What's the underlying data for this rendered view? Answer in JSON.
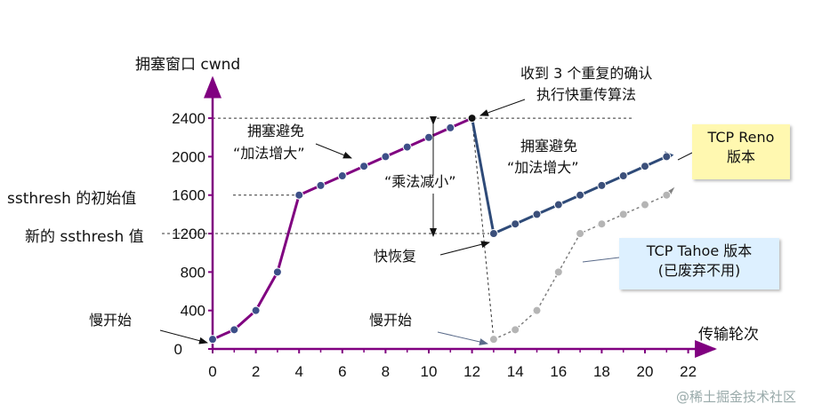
{
  "chart_data": {
    "type": "line",
    "ylabel": "拥塞窗口 cwnd",
    "xlabel": "传输轮次",
    "x_ticks": [
      0,
      2,
      4,
      6,
      8,
      10,
      12,
      14,
      16,
      18,
      20,
      22
    ],
    "y_ticks": [
      0,
      400,
      800,
      1200,
      1600,
      2000,
      2400
    ],
    "xlim": [
      0,
      22
    ],
    "ylim": [
      0,
      2400
    ],
    "series": [
      {
        "name": "TCP Reno 版本",
        "x": [
          0,
          1,
          2,
          3,
          4,
          5,
          6,
          7,
          8,
          9,
          10,
          11,
          12,
          13,
          14,
          15,
          16,
          17,
          18,
          19,
          20,
          21
        ],
        "values": [
          100,
          200,
          400,
          800,
          1600,
          1700,
          1800,
          1900,
          2000,
          2100,
          2200,
          2300,
          2400,
          1200,
          1300,
          1400,
          1500,
          1600,
          1700,
          1800,
          1900,
          2000
        ],
        "color_slow_start": "#800080",
        "color_after": "#2e4a78"
      },
      {
        "name": "TCP Tahoe 版本 (已废弃不用)",
        "x": [
          13,
          14,
          15,
          16,
          17,
          18,
          19,
          20,
          21
        ],
        "values": [
          100,
          200,
          400,
          800,
          1200,
          1300,
          1400,
          1500,
          1600
        ],
        "color": "#808080"
      }
    ],
    "y_extra_labels": [
      {
        "label": "ssthresh 的初始值",
        "y": 1600
      },
      {
        "label": "新的 ssthresh 值",
        "y": 1200
      }
    ],
    "annotations": [
      {
        "text": "收到 3 个重复的确认",
        "line": 1
      },
      {
        "text": "执行快重传算法",
        "line": 2
      },
      {
        "text": "拥塞避免",
        "group": "ca1"
      },
      {
        "text": "“加法增大”",
        "group": "ca1"
      },
      {
        "text": "拥塞避免",
        "group": "ca2"
      },
      {
        "text": "“加法增大”",
        "group": "ca2"
      },
      {
        "text": "“乘法减小”"
      },
      {
        "text": "快恢复"
      },
      {
        "text": "慢开始",
        "group": "ss1"
      },
      {
        "text": "慢开始",
        "group": "ss2"
      }
    ],
    "reno_box": {
      "line1": "TCP Reno",
      "line2": "版本"
    },
    "tahoe_box": {
      "line1": "TCP Tahoe 版本",
      "line2": "(已废弃不用)"
    }
  },
  "watermark": "@稀土掘金技术社区"
}
